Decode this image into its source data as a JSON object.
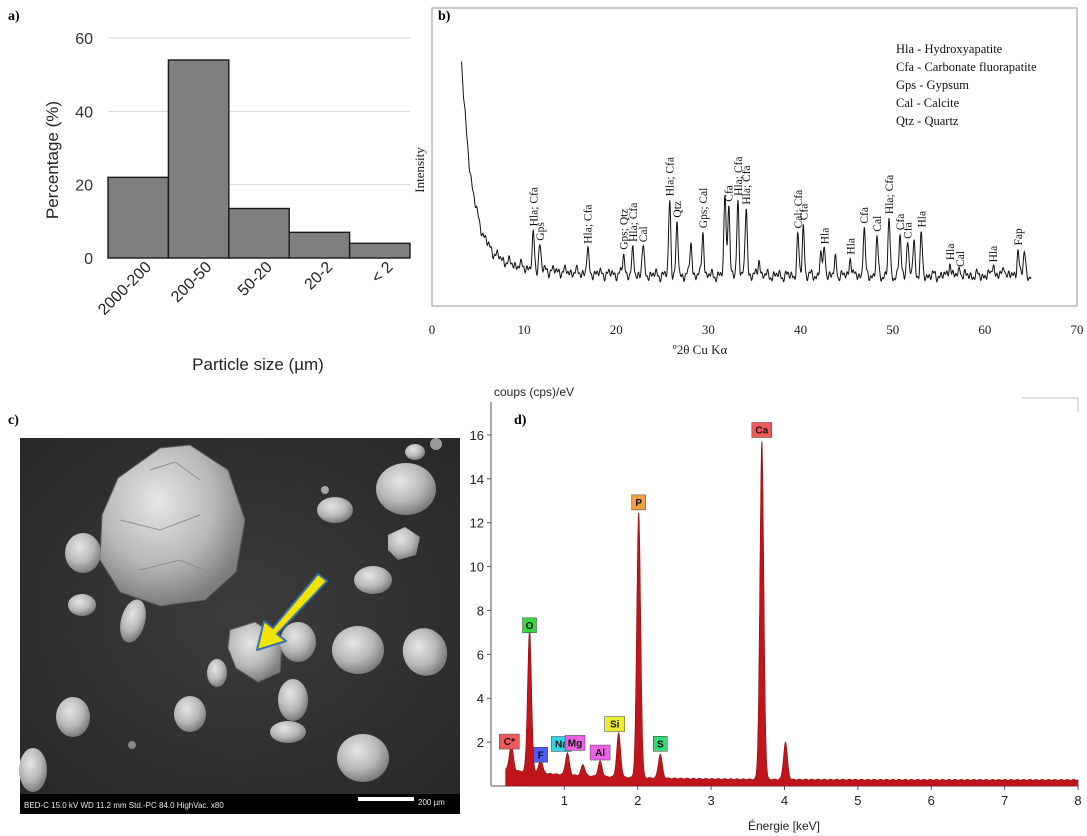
{
  "panels": {
    "a": "a)",
    "b": "b)",
    "c": "c)",
    "d": "d)"
  },
  "chart_data": [
    {
      "id": "histogram",
      "type": "bar",
      "categories": [
        "2000-200",
        "200-50",
        "50-20",
        "20-2",
        "< 2"
      ],
      "values": [
        22,
        54,
        13.5,
        7,
        4
      ],
      "xlabel": "Particle size (µm)",
      "ylabel": "Percentage (%)",
      "ylim": [
        0,
        60
      ],
      "yticks": [
        0,
        20,
        40,
        60
      ],
      "grid": true,
      "bar_color": "#7f7f7f"
    },
    {
      "id": "xrd",
      "type": "line",
      "xlabel": "º2θ Cu Kα",
      "ylabel": "Intensity",
      "xlim": [
        0,
        70
      ],
      "xticks": [
        0,
        10,
        20,
        30,
        40,
        50,
        60,
        70
      ],
      "legend_position": "top-right",
      "legend": [
        "Hla - Hydroxyapatite",
        "Cfa - Carbonate fluorapatite",
        "Gps - Gypsum",
        "Cal - Calcite",
        "Qtz - Quartz"
      ],
      "background": 0.8,
      "low_angle_rise": {
        "start_x": 3.2,
        "amplitude": 6.8,
        "decay": 1.15
      },
      "peaks": [
        {
          "x": 11.0,
          "h": 1.2,
          "label": "Hla; Cfa"
        },
        {
          "x": 11.7,
          "h": 0.9,
          "label": "Gps"
        },
        {
          "x": 16.9,
          "h": 0.8,
          "label": "Hla; Cfa"
        },
        {
          "x": 20.8,
          "h": 0.7,
          "label": "Gps; Qtz"
        },
        {
          "x": 21.8,
          "h": 0.8,
          "label": "Hla; Cfa"
        },
        {
          "x": 22.9,
          "h": 1.0,
          "label": "Cal"
        },
        {
          "x": 25.8,
          "h": 2.7,
          "label": "Hla; Cfa"
        },
        {
          "x": 26.6,
          "h": 1.8,
          "label": "Qtz"
        },
        {
          "x": 28.1,
          "h": 1.2,
          "label": ""
        },
        {
          "x": 29.4,
          "h": 1.6,
          "label": "Gps; Cal"
        },
        {
          "x": 31.8,
          "h": 2.9,
          "label": ""
        },
        {
          "x": 32.2,
          "h": 2.6,
          "label": "Cfa"
        },
        {
          "x": 33.2,
          "h": 2.7,
          "label": "Hla; Cfa"
        },
        {
          "x": 34.1,
          "h": 2.5,
          "label": "Hla; Cfa"
        },
        {
          "x": 35.5,
          "h": 0.6,
          "label": ""
        },
        {
          "x": 39.7,
          "h": 1.4,
          "label": "Cal; Cfa"
        },
        {
          "x": 40.3,
          "h": 1.8,
          "label": "Cfa"
        },
        {
          "x": 42.2,
          "h": 0.8,
          "label": ""
        },
        {
          "x": 42.6,
          "h": 1.0,
          "label": "Hla"
        },
        {
          "x": 43.8,
          "h": 0.6,
          "label": ""
        },
        {
          "x": 45.4,
          "h": 0.7,
          "label": "Hla"
        },
        {
          "x": 46.9,
          "h": 1.7,
          "label": "Cfa"
        },
        {
          "x": 48.3,
          "h": 1.3,
          "label": "Cal"
        },
        {
          "x": 49.6,
          "h": 2.0,
          "label": "Hla; Cfa"
        },
        {
          "x": 50.8,
          "h": 1.4,
          "label": "Cfa"
        },
        {
          "x": 51.6,
          "h": 1.3,
          "label": "Cfa"
        },
        {
          "x": 52.3,
          "h": 1.3,
          "label": ""
        },
        {
          "x": 53.1,
          "h": 1.4,
          "label": "Hla"
        },
        {
          "x": 56.2,
          "h": 0.5,
          "label": "Hla"
        },
        {
          "x": 57.3,
          "h": 0.3,
          "label": "Cal"
        },
        {
          "x": 60.9,
          "h": 0.5,
          "label": "Hla"
        },
        {
          "x": 62.1,
          "h": 0.4,
          "label": ""
        },
        {
          "x": 63.6,
          "h": 1.0,
          "label": "Fap"
        },
        {
          "x": 64.3,
          "h": 0.9,
          "label": ""
        }
      ]
    },
    {
      "id": "eds",
      "type": "area",
      "ylabel": "coups (cps)/eV",
      "xlabel": "Énergie [keV]",
      "xlim": [
        0,
        8
      ],
      "ylim": [
        0,
        17.5
      ],
      "xticks": [
        1,
        2,
        3,
        4,
        5,
        6,
        7,
        8
      ],
      "yticks": [
        2,
        4,
        6,
        8,
        10,
        12,
        14,
        16
      ],
      "fill_color": "#c0161b",
      "peaks": [
        {
          "x": 0.277,
          "y": 1.5,
          "label": "C*",
          "tag_color": "#f0595a"
        },
        {
          "x": 0.525,
          "y": 6.8,
          "label": "O",
          "tag_color": "#39d641"
        },
        {
          "x": 0.677,
          "y": 0.9,
          "label": "F",
          "tag_color": "#4c5bff"
        },
        {
          "x": 1.041,
          "y": 1.3,
          "label": "Na",
          "tag_color": "#33d6e6"
        },
        {
          "x": 1.254,
          "y": 0.8,
          "label": "Mg",
          "tag_color": "#ec62e4"
        },
        {
          "x": 1.487,
          "y": 1.0,
          "label": "Al",
          "tag_color": "#ec62e4"
        },
        {
          "x": 1.74,
          "y": 2.3,
          "label": "Si",
          "tag_color": "#ecec32"
        },
        {
          "x": 2.013,
          "y": 12.4,
          "label": "P",
          "tag_color": "#f5a142"
        },
        {
          "x": 2.307,
          "y": 1.4,
          "label": "S",
          "tag_color": "#39d67a"
        },
        {
          "x": 3.691,
          "y": 15.7,
          "label": "Ca",
          "tag_color": "#f0595a"
        },
        {
          "x": 4.013,
          "y": 2.0,
          "label": "",
          "tag_color": ""
        }
      ]
    }
  ],
  "sem": {
    "info_bar": "BED-C  15.0 kV   WD 11.2 mm    Std.-PC 84.0    HighVac.  x80",
    "scale_label": "200 µm",
    "arrow_color": "#f2e400",
    "arrow_outline": "#3a6fb0"
  }
}
